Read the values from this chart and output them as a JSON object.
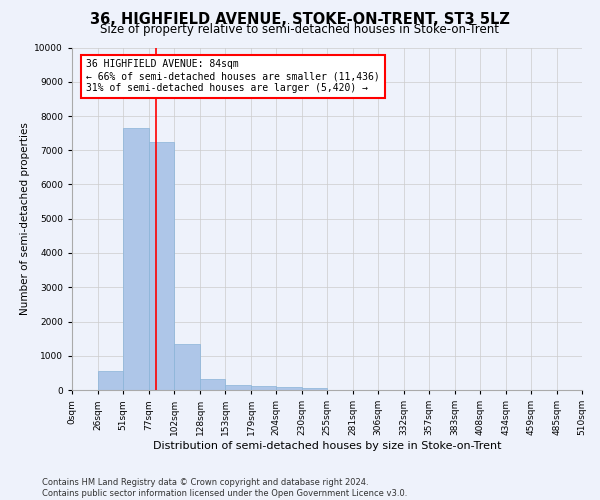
{
  "title": "36, HIGHFIELD AVENUE, STOKE-ON-TRENT, ST3 5LZ",
  "subtitle": "Size of property relative to semi-detached houses in Stoke-on-Trent",
  "xlabel": "Distribution of semi-detached houses by size in Stoke-on-Trent",
  "ylabel": "Number of semi-detached properties",
  "bin_edges": [
    0,
    26,
    51,
    77,
    102,
    128,
    153,
    179,
    204,
    230,
    255,
    281,
    306,
    332,
    357,
    383,
    408,
    434,
    459,
    485,
    510
  ],
  "bar_heights": [
    0,
    550,
    7650,
    7250,
    1350,
    320,
    150,
    120,
    100,
    50,
    0,
    0,
    0,
    0,
    0,
    0,
    0,
    0,
    0,
    0
  ],
  "bar_color": "#aec6e8",
  "bar_edgecolor": "#8ab4d8",
  "property_size": 84,
  "property_line_color": "red",
  "annotation_text": "36 HIGHFIELD AVENUE: 84sqm\n← 66% of semi-detached houses are smaller (11,436)\n31% of semi-detached houses are larger (5,420) →",
  "annotation_boxcolor": "white",
  "annotation_boxedgecolor": "red",
  "ylim": [
    0,
    10000
  ],
  "yticks": [
    0,
    1000,
    2000,
    3000,
    4000,
    5000,
    6000,
    7000,
    8000,
    9000,
    10000
  ],
  "tick_labels": [
    "0sqm",
    "26sqm",
    "51sqm",
    "77sqm",
    "102sqm",
    "128sqm",
    "153sqm",
    "179sqm",
    "204sqm",
    "230sqm",
    "255sqm",
    "281sqm",
    "306sqm",
    "332sqm",
    "357sqm",
    "383sqm",
    "408sqm",
    "434sqm",
    "459sqm",
    "485sqm",
    "510sqm"
  ],
  "footer": "Contains HM Land Registry data © Crown copyright and database right 2024.\nContains public sector information licensed under the Open Government Licence v3.0.",
  "bg_color": "#eef2fb",
  "grid_color": "#cccccc",
  "title_fontsize": 10.5,
  "subtitle_fontsize": 8.5,
  "axis_label_fontsize": 7.5,
  "tick_fontsize": 6.5,
  "footer_fontsize": 6.0
}
